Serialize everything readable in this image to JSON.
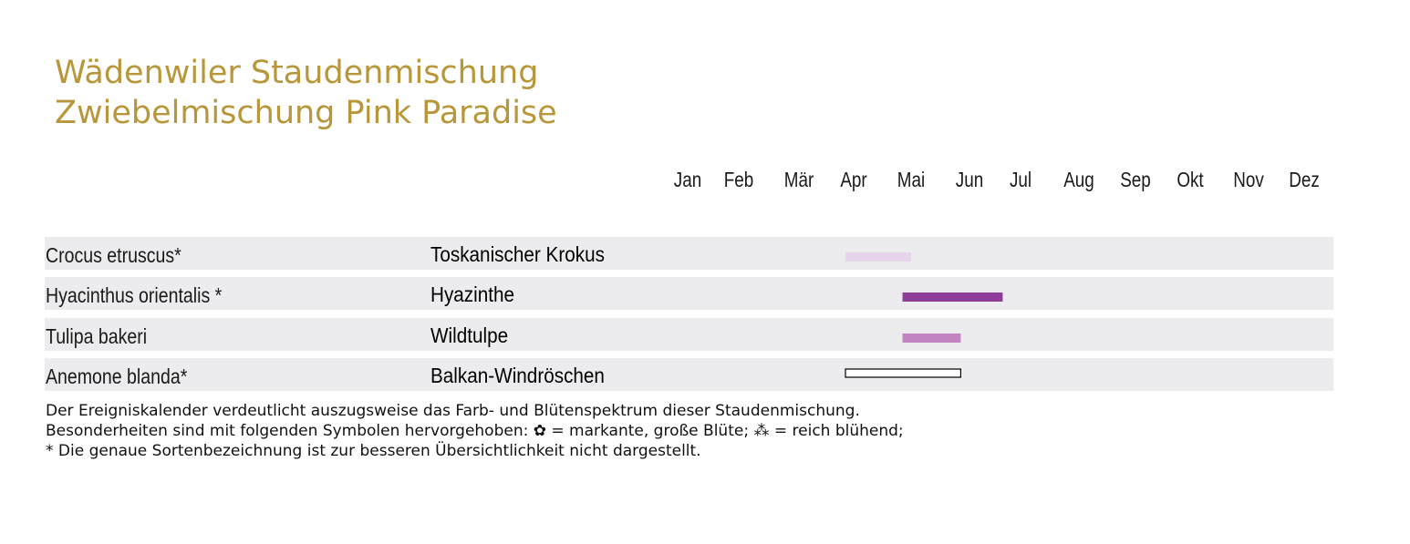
{
  "title_line1": "Wädenwiler Staudenmischung",
  "title_line2": "Zwiebelmischung Pink Paradise",
  "chart_data": {
    "type": "bar",
    "subtype": "gantt-timeline",
    "months": [
      "Jan",
      "Feb",
      "Mär",
      "Apr",
      "Mai",
      "Jun",
      "Jul",
      "Aug",
      "Sep",
      "Okt",
      "Nov",
      "Dez"
    ],
    "rows": [
      {
        "latin": "Crocus etruscus*",
        "common": "Toskanischer Krokus",
        "start": 2.85,
        "end": 4.0,
        "color": "#e6d5ea",
        "style": "filled"
      },
      {
        "latin": "Hyacinthus orientalis *",
        "common": "Hyazinthe",
        "start": 3.85,
        "end": 5.65,
        "color": "#8e3e98",
        "style": "filled"
      },
      {
        "latin": "Tulipa bakeri",
        "common": "Wildtulpe",
        "start": 3.85,
        "end": 4.85,
        "color": "#c184c0",
        "style": "filled"
      },
      {
        "latin": "Anemone blanda*",
        "common": "Balkan-Windröschen",
        "start": 2.85,
        "end": 4.85,
        "color": "#ffffff",
        "style": "outline"
      }
    ]
  },
  "footnotes": [
    "Der Ereigniskalender verdeutlicht auszugsweise das Farb- und Blütenspektrum dieser Staudenmischung.",
    "Besonderheiten sind mit folgenden Symbolen hervorgehoben: ✿ = markante, große Blüte; ⁂ = reich blühend;",
    "* Die genaue Sortenbezeichnung ist zur besseren Übersichtlichkeit nicht dargestellt."
  ]
}
